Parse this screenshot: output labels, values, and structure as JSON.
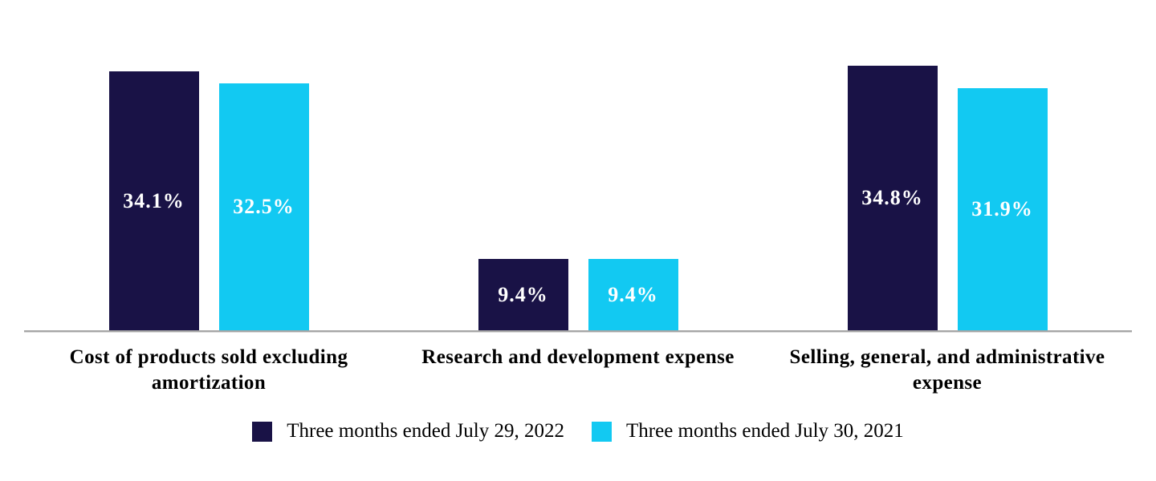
{
  "chart_data": {
    "type": "bar",
    "categories": [
      "Cost of products sold excluding amortization",
      "Research and development expense",
      "Selling, general, and administrative expense"
    ],
    "series": [
      {
        "name": "Three months ended July 29, 2022",
        "color": "#191246",
        "values": [
          34.1,
          9.4,
          34.8
        ],
        "data_labels": [
          "34.1%",
          "9.4%",
          "34.8%"
        ]
      },
      {
        "name": "Three months ended July 30, 2021",
        "color": "#12c9f2",
        "values": [
          32.5,
          9.4,
          31.9
        ],
        "data_labels": [
          "32.5%",
          "9.4%",
          "31.9%"
        ]
      }
    ],
    "title": "",
    "xlabel": "",
    "ylabel": "",
    "ylim": [
      0,
      43.5
    ],
    "grid": false,
    "axis_ticks_visible": false,
    "legend_position": "bottom",
    "value_label_color": "#ffffff",
    "axis_line_color": "#a6a6a6",
    "background_color": "#ffffff"
  }
}
